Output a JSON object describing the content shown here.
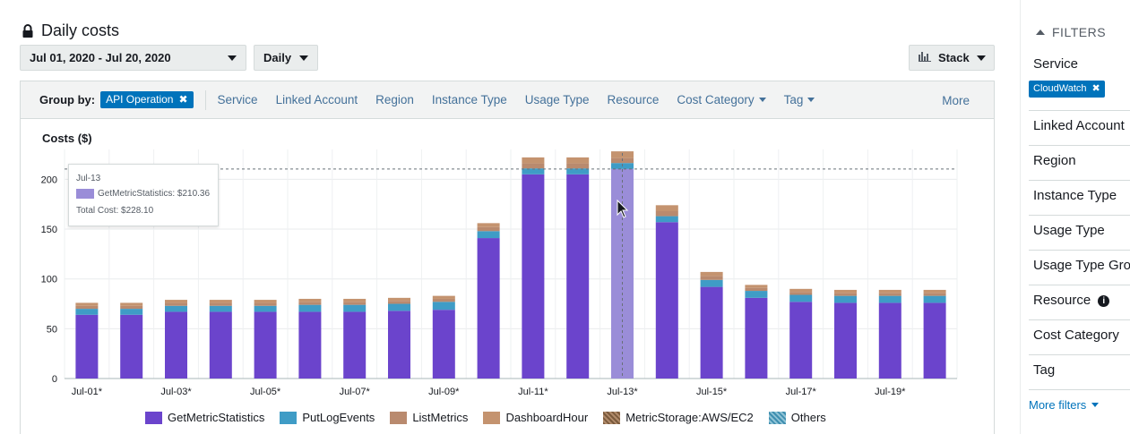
{
  "header": {
    "title": "Daily costs",
    "lock_icon": "lock-icon"
  },
  "controls": {
    "date_range": "Jul 01, 2020 - Jul 20, 2020",
    "granularity": "Daily",
    "chart_style": "Stack"
  },
  "groupby": {
    "label": "Group by:",
    "selected": "API Operation",
    "items": [
      "Service",
      "Linked Account",
      "Region",
      "Instance Type",
      "Usage Type",
      "Resource"
    ],
    "dropdown_items": [
      "Cost Category",
      "Tag"
    ],
    "more": "More"
  },
  "tooltip": {
    "date": "Jul-13",
    "line": "GetMetricStatistics: $210.36",
    "total": "Total Cost: $228.10"
  },
  "filters": {
    "title": "FILTERS",
    "service_label": "Service",
    "service_chip": "CloudWatch",
    "sections": [
      "Linked Account",
      "Region",
      "Instance Type",
      "Usage Type",
      "Usage Type Gro",
      "Resource",
      "Cost Category",
      "Tag"
    ],
    "more": "More filters"
  },
  "colors": {
    "GetMetricStatistics": "#6b44cc",
    "PutLogEvents": "#3f9cc6",
    "ListMetrics": "#b98a6e",
    "DashboardHour": "#c4936f",
    "MetricStorage": "#7a5a3c",
    "Others": "#5a9db8",
    "highlight": "#9a8dd8"
  },
  "chart_data": {
    "type": "bar",
    "stacked": true,
    "ylabel": "Costs ($)",
    "ylim": [
      0,
      230
    ],
    "yticks": [
      0,
      50,
      100,
      150,
      200
    ],
    "reference_line": 210.36,
    "highlighted_category": "Jul-13*",
    "categories": [
      "Jul-01*",
      "Jul-02*",
      "Jul-03*",
      "Jul-04*",
      "Jul-05*",
      "Jul-06*",
      "Jul-07*",
      "Jul-08*",
      "Jul-09*",
      "Jul-10*",
      "Jul-11*",
      "Jul-12*",
      "Jul-13*",
      "Jul-14*",
      "Jul-15*",
      "Jul-16*",
      "Jul-17*",
      "Jul-18*",
      "Jul-19*",
      "Jul-20*"
    ],
    "xtick_labels": [
      "Jul-01*",
      "",
      "Jul-03*",
      "",
      "Jul-05*",
      "",
      "Jul-07*",
      "",
      "Jul-09*",
      "",
      "Jul-11*",
      "",
      "Jul-13*",
      "",
      "Jul-15*",
      "",
      "Jul-17*",
      "",
      "Jul-19*",
      ""
    ],
    "series": [
      {
        "name": "GetMetricStatistics",
        "values": [
          64,
          64,
          67,
          67,
          67,
          67,
          67,
          68,
          69,
          141,
          205,
          205,
          210.36,
          157,
          92,
          81,
          77,
          76,
          76,
          76
        ]
      },
      {
        "name": "PutLogEvents",
        "values": [
          6,
          6,
          6,
          6,
          6,
          7,
          7,
          7,
          8,
          7,
          6,
          6,
          6,
          6,
          7,
          7,
          7,
          7,
          7,
          7
        ]
      },
      {
        "name": "ListMetrics",
        "values": [
          3,
          3,
          3,
          3,
          3,
          3,
          3,
          3,
          3,
          4,
          5,
          5,
          5,
          5,
          4,
          3,
          3,
          3,
          3,
          3
        ]
      },
      {
        "name": "DashboardHour",
        "values": [
          3,
          3,
          3,
          3,
          3,
          3,
          3,
          3,
          3,
          4,
          6,
          6,
          6.74,
          6,
          4,
          3,
          3,
          3,
          3,
          3
        ]
      },
      {
        "name": "MetricStorage:AWS/EC2",
        "values": [
          0,
          0,
          0,
          0,
          0,
          0,
          0,
          0,
          0,
          0,
          0,
          0,
          0,
          0,
          0,
          0,
          0,
          0,
          0,
          0
        ]
      },
      {
        "name": "Others",
        "values": [
          0,
          0,
          0,
          0,
          0,
          0,
          0,
          0,
          0,
          0,
          0,
          0,
          0,
          0,
          0,
          0,
          0,
          0,
          0,
          0
        ]
      }
    ],
    "legend": [
      "GetMetricStatistics",
      "PutLogEvents",
      "ListMetrics",
      "DashboardHour",
      "MetricStorage:AWS/EC2",
      "Others"
    ],
    "legend_position": "bottom"
  }
}
